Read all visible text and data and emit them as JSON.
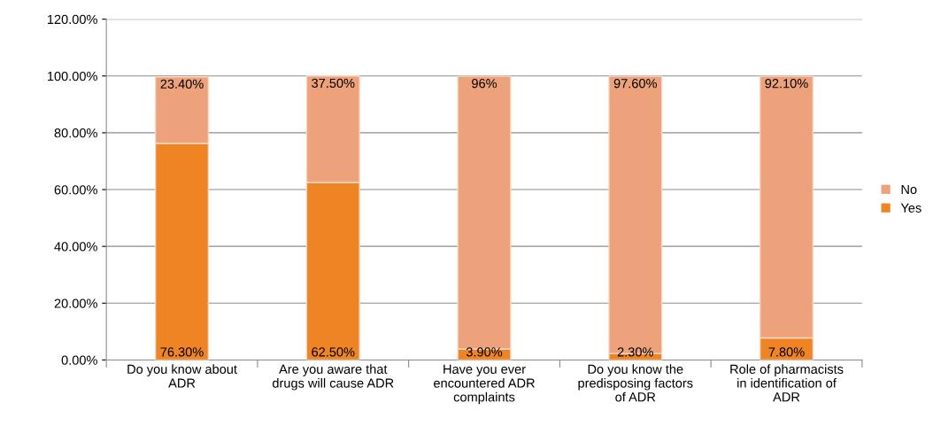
{
  "chart_data": {
    "type": "bar",
    "stacked": true,
    "categories": [
      "Do you know about\nADR",
      "Are you aware that\ndrugs will cause ADR",
      "Have you ever\nencountered ADR\ncomplaints",
      "Do you know the\npredisposing factors\nof ADR",
      "Role of pharmacists\nin identification of\nADR"
    ],
    "series": [
      {
        "name": "Yes",
        "color": "#ee8424",
        "values": [
          76.3,
          62.5,
          3.9,
          2.3,
          7.8
        ],
        "value_labels": [
          "76.30%",
          "62.50%",
          "3.90%",
          "2.30%",
          "7.80%"
        ]
      },
      {
        "name": "No",
        "color": "#eea27c",
        "values": [
          23.4,
          37.5,
          96,
          97.6,
          92.1
        ],
        "value_labels": [
          "23.40%",
          "37.50%",
          "96%",
          "97.60%",
          "92.10%"
        ]
      }
    ],
    "ylim": [
      0,
      120
    ],
    "yticks": [
      {
        "value": 0,
        "label": "0.00%"
      },
      {
        "value": 20,
        "label": "20.00%"
      },
      {
        "value": 40,
        "label": "40.00%"
      },
      {
        "value": 60,
        "label": "60.00%"
      },
      {
        "value": 80,
        "label": "80.00%"
      },
      {
        "value": 100,
        "label": "100.00%"
      },
      {
        "value": 120,
        "label": "120.00%"
      }
    ],
    "grid": "y",
    "legend": "right"
  }
}
